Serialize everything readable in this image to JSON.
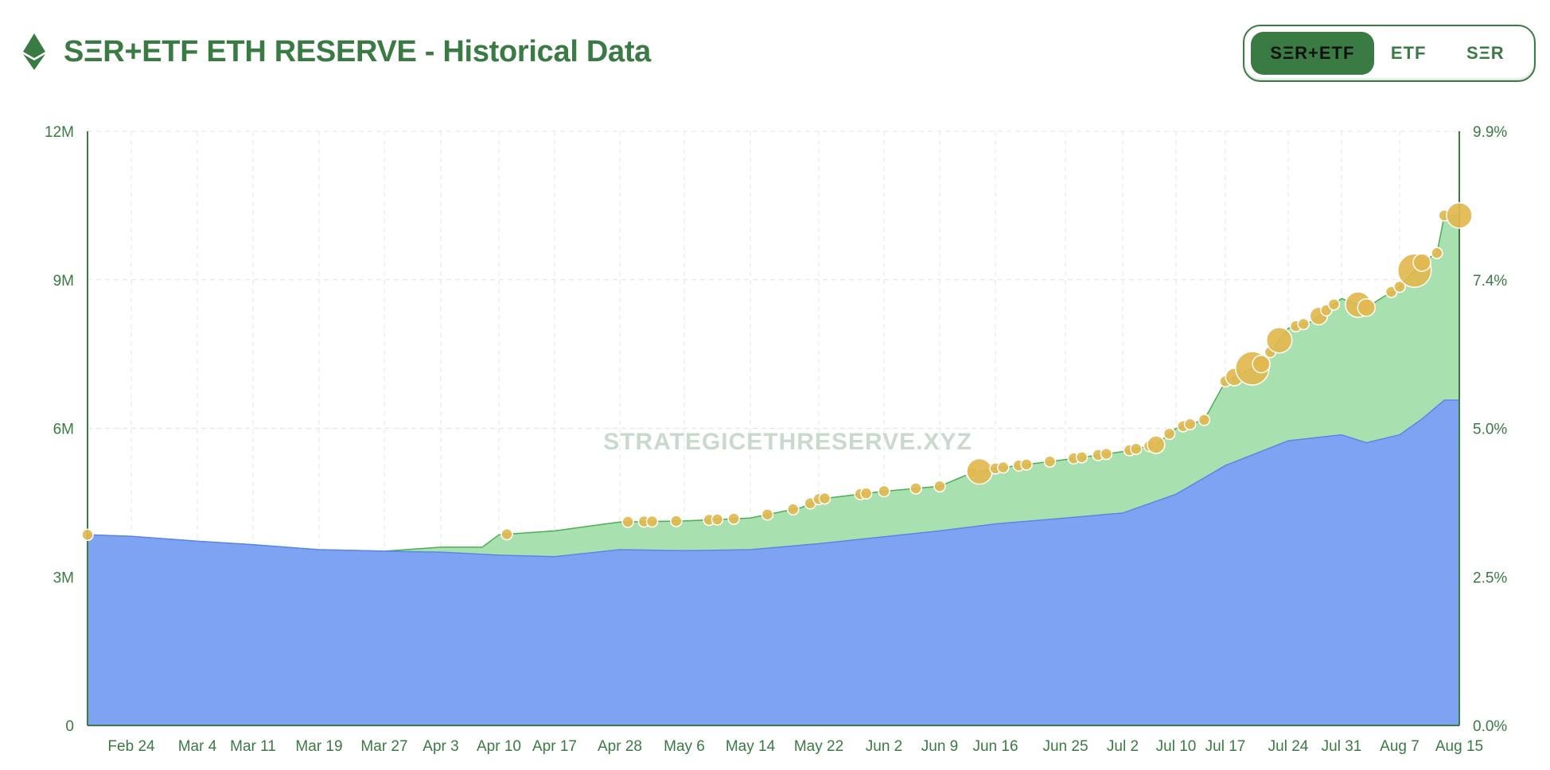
{
  "header": {
    "title": "SΞR+ETF ETH RESERVE - Historical Data",
    "icon": "ethereum-icon"
  },
  "toggle": {
    "options": [
      "SΞR+ETF",
      "ETF",
      "SΞR"
    ],
    "selected": "SΞR+ETF"
  },
  "watermark": "STRATEGICETHRESERVE.XYZ",
  "colors": {
    "accent": "#3a7a43",
    "etf_fill": "#7ea3f2",
    "etf_line": "#5a86e8",
    "ser_fill": "#a8e0b0",
    "ser_line": "#4caf50",
    "purchase_dot": "#e2b94f"
  },
  "chart_data": {
    "type": "area",
    "stacked": true,
    "x_type": "date",
    "x_ticks": [
      "Feb 24",
      "Mar 4",
      "Mar 11",
      "Mar 19",
      "Mar 27",
      "Apr 3",
      "Apr 10",
      "Apr 17",
      "Apr 28",
      "May 6",
      "May 14",
      "May 22",
      "Jun 2",
      "Jun 9",
      "Jun 16",
      "Jun 25",
      "Jul 2",
      "Jul 10",
      "Jul 17",
      "Jul 24",
      "Jul 31",
      "Aug 7",
      "Aug 15"
    ],
    "y_left": {
      "range": [
        0,
        12000000
      ],
      "ticks": [
        "0",
        "3M",
        "6M",
        "9M",
        "12M"
      ]
    },
    "y_right": {
      "range": [
        0,
        9.9
      ],
      "unit": "%",
      "ticks": [
        "0.0%",
        "2.5%",
        "5.0%",
        "7.4%",
        "9.9%"
      ]
    },
    "grid": true,
    "series": [
      {
        "key": "etf",
        "points": [
          [
            "Feb 18",
            3.85
          ],
          [
            "Feb 24",
            3.82
          ],
          [
            "Mar 4",
            3.72
          ],
          [
            "Mar 11",
            3.65
          ],
          [
            "Mar 19",
            3.55
          ],
          [
            "Mar 27",
            3.52
          ],
          [
            "Apr 3",
            3.5
          ],
          [
            "Apr 10",
            3.44
          ],
          [
            "Apr 17",
            3.41
          ],
          [
            "Apr 28",
            3.55
          ],
          [
            "May 6",
            3.53
          ],
          [
            "May 14",
            3.55
          ],
          [
            "May 22",
            3.67
          ],
          [
            "Jun 2",
            3.81
          ],
          [
            "Jun 9",
            3.93
          ],
          [
            "Jun 16",
            4.07
          ],
          [
            "Jun 25",
            4.19
          ],
          [
            "Jul 2",
            4.29
          ],
          [
            "Jul 10",
            4.67
          ],
          [
            "Jul 17",
            5.25
          ],
          [
            "Jul 24",
            5.75
          ],
          [
            "Jul 31",
            5.87
          ],
          [
            "Aug 3",
            5.71
          ],
          [
            "Aug 7",
            5.87
          ],
          [
            "Aug 10",
            6.19
          ],
          [
            "Aug 13",
            6.57
          ],
          [
            "Aug 15",
            6.57
          ]
        ]
      },
      {
        "key": "total",
        "points": [
          [
            "Feb 18",
            3.85
          ],
          [
            "Feb 24",
            3.82
          ],
          [
            "Mar 4",
            3.72
          ],
          [
            "Mar 11",
            3.65
          ],
          [
            "Mar 19",
            3.55
          ],
          [
            "Mar 27",
            3.52
          ],
          [
            "Apr 3",
            3.6
          ],
          [
            "Apr 8",
            3.6
          ],
          [
            "Apr 10",
            3.85
          ],
          [
            "Apr 17",
            3.93
          ],
          [
            "Apr 28",
            4.11
          ],
          [
            "May 6",
            4.13
          ],
          [
            "May 14",
            4.19
          ],
          [
            "May 20",
            4.4
          ],
          [
            "May 22",
            4.57
          ],
          [
            "Jun 2",
            4.73
          ],
          [
            "Jun 9",
            4.83
          ],
          [
            "Jun 13",
            5.1
          ],
          [
            "Jun 16",
            5.19
          ],
          [
            "Jun 25",
            5.37
          ],
          [
            "Jul 2",
            5.53
          ],
          [
            "Jul 7",
            5.67
          ],
          [
            "Jul 10",
            6.0
          ],
          [
            "Jul 14",
            6.17
          ],
          [
            "Jul 17",
            6.95
          ],
          [
            "Jul 21",
            7.3
          ],
          [
            "Jul 24",
            8.02
          ],
          [
            "Jul 27",
            8.15
          ],
          [
            "Jul 31",
            8.62
          ],
          [
            "Aug 3",
            8.44
          ],
          [
            "Aug 7",
            8.86
          ],
          [
            "Aug 10",
            9.35
          ],
          [
            "Aug 12",
            9.54
          ],
          [
            "Aug 13",
            10.3
          ],
          [
            "Aug 15",
            10.3
          ]
        ]
      }
    ],
    "y_unit_multiplier": 1000000,
    "purchases": [
      [
        "Feb 18",
        1
      ],
      [
        "Apr 11",
        1
      ],
      [
        "Apr 29",
        1
      ],
      [
        "May 1",
        1
      ],
      [
        "May 2",
        1
      ],
      [
        "May 5",
        1
      ],
      [
        "May 9",
        1
      ],
      [
        "May 10",
        1
      ],
      [
        "May 12",
        1
      ],
      [
        "May 16",
        1
      ],
      [
        "May 19",
        1
      ],
      [
        "May 21",
        1
      ],
      [
        "May 22",
        1
      ],
      [
        "May 23",
        1
      ],
      [
        "May 29",
        1
      ],
      [
        "May 30",
        1
      ],
      [
        "Jun 2",
        1
      ],
      [
        "Jun 6",
        1
      ],
      [
        "Jun 9",
        1
      ],
      [
        "Jun 13",
        1
      ],
      [
        "Jun 14",
        3
      ],
      [
        "Jun 16",
        1
      ],
      [
        "Jun 17",
        1
      ],
      [
        "Jun 19",
        1
      ],
      [
        "Jun 20",
        1
      ],
      [
        "Jun 23",
        1
      ],
      [
        "Jun 26",
        1
      ],
      [
        "Jun 27",
        1
      ],
      [
        "Jun 29",
        1
      ],
      [
        "Jun 30",
        1
      ],
      [
        "Jul 3",
        1
      ],
      [
        "Jul 4",
        1
      ],
      [
        "Jul 6",
        1
      ],
      [
        "Jul 7",
        2
      ],
      [
        "Jul 9",
        1
      ],
      [
        "Jul 11",
        1
      ],
      [
        "Jul 12",
        1
      ],
      [
        "Jul 14",
        1
      ],
      [
        "Jul 17",
        1
      ],
      [
        "Jul 18",
        2
      ],
      [
        "Jul 20",
        4
      ],
      [
        "Jul 21",
        2
      ],
      [
        "Jul 22",
        1
      ],
      [
        "Jul 23",
        3
      ],
      [
        "Jul 25",
        1
      ],
      [
        "Jul 26",
        1
      ],
      [
        "Jul 28",
        2
      ],
      [
        "Jul 29",
        1
      ],
      [
        "Jul 30",
        1
      ],
      [
        "Aug 2",
        3
      ],
      [
        "Aug 3",
        2
      ],
      [
        "Aug 6",
        1
      ],
      [
        "Aug 7",
        1
      ],
      [
        "Aug 9",
        4
      ],
      [
        "Aug 10",
        2
      ],
      [
        "Aug 12",
        1
      ],
      [
        "Aug 13",
        1
      ],
      [
        "Aug 15",
        3
      ]
    ]
  }
}
